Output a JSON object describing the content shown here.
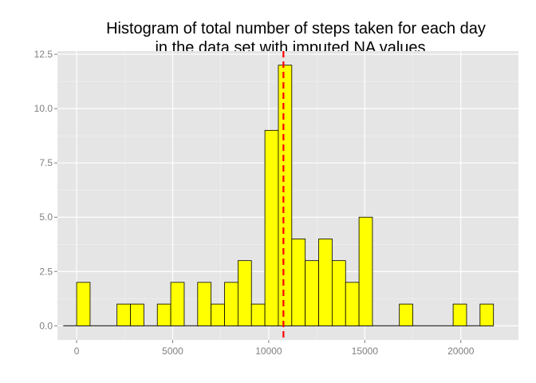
{
  "chart_data": {
    "type": "bar",
    "title_lines": [
      "Histogram of total number of steps taken for each day",
      "in the data set with imputed NA values"
    ],
    "xlabel": "",
    "ylabel": "",
    "xlim": [
      -1000,
      23000
    ],
    "ylim": [
      -0.65,
      12.65
    ],
    "x_ticks": [
      {
        "value": 0,
        "label": "0"
      },
      {
        "value": 5000,
        "label": "5000"
      },
      {
        "value": 10000,
        "label": "10000"
      },
      {
        "value": 15000,
        "label": "15000"
      },
      {
        "value": 20000,
        "label": "20000"
      }
    ],
    "y_ticks": [
      {
        "value": 0,
        "label": "0.0"
      },
      {
        "value": 2.5,
        "label": "2.5"
      },
      {
        "value": 5,
        "label": "5.0"
      },
      {
        "value": 7.5,
        "label": "7.5"
      },
      {
        "value": 10,
        "label": "10.0"
      },
      {
        "value": 12.5,
        "label": "12.5"
      }
    ],
    "bin_width": 700,
    "bin_start": -700,
    "counts": [
      0,
      2,
      0,
      0,
      1,
      1,
      0,
      1,
      2,
      0,
      2,
      1,
      2,
      3,
      1,
      9,
      12,
      4,
      3,
      4,
      3,
      2,
      5,
      0,
      0,
      1,
      0,
      0,
      0,
      1,
      0,
      1
    ],
    "reference_line": {
      "value": 10766,
      "color": "#ff0000",
      "style": "dashed"
    },
    "grid": true,
    "colors": {
      "panel": "#e5e5e5",
      "grid_major": "#ffffff",
      "grid_minor": "#f2f2f2",
      "bar_fill": "#ffff00",
      "bar_stroke": "#000000"
    }
  }
}
